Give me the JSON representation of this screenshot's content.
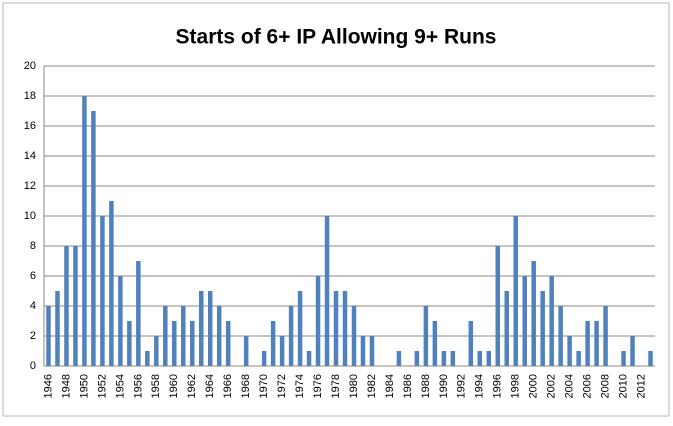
{
  "chart_data": {
    "type": "bar",
    "title": "Starts of 6+ IP Allowing 9+ Runs",
    "categories": [
      "1946",
      null,
      "1948",
      null,
      "1950",
      null,
      "1952",
      null,
      "1954",
      null,
      "1956",
      null,
      "1958",
      null,
      "1960",
      null,
      "1962",
      null,
      "1964",
      null,
      "1966",
      null,
      "1968",
      null,
      "1970",
      null,
      "1972",
      null,
      "1974",
      null,
      "1976",
      null,
      "1978",
      null,
      "1980",
      null,
      "1982",
      null,
      "1984",
      null,
      "1986",
      null,
      "1988",
      null,
      "1990",
      null,
      "1992",
      null,
      "1994",
      null,
      "1996",
      null,
      "1998",
      null,
      "2000",
      null,
      "2002",
      null,
      "2004",
      null,
      "2006",
      null,
      "2008",
      null,
      "2010",
      null,
      "2012",
      null
    ],
    "values": [
      4,
      5,
      8,
      8,
      18,
      17,
      10,
      11,
      6,
      3,
      7,
      1,
      2,
      4,
      3,
      4,
      3,
      5,
      5,
      4,
      3,
      0,
      2,
      0,
      1,
      3,
      2,
      4,
      5,
      1,
      6,
      10,
      5,
      5,
      4,
      2,
      2,
      0,
      0,
      1,
      0,
      1,
      4,
      3,
      1,
      1,
      0,
      3,
      1,
      1,
      8,
      5,
      10,
      6,
      7,
      5,
      6,
      4,
      2,
      1,
      3,
      3,
      4,
      0,
      1,
      2,
      0,
      1
    ],
    "color": "#4f81bd",
    "ylim": [
      0,
      20
    ],
    "yticks": [
      0,
      2,
      4,
      6,
      8,
      10,
      12,
      14,
      16,
      18,
      20
    ],
    "grid": true
  }
}
